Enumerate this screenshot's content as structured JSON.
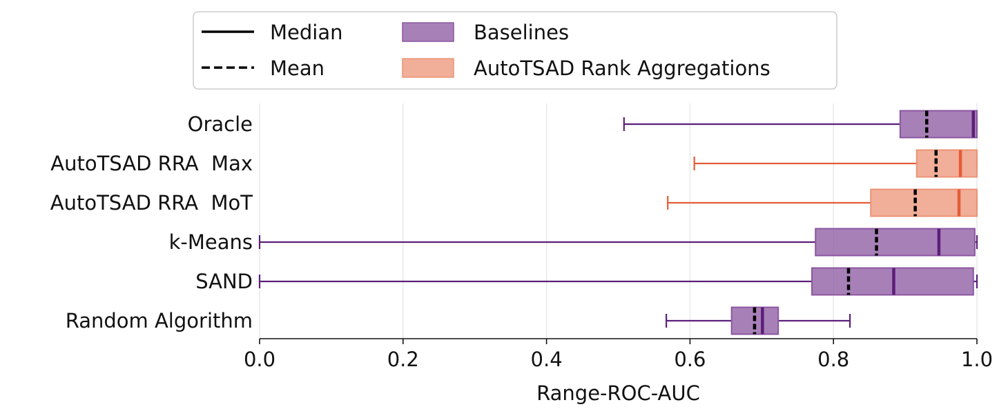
{
  "chart_data": {
    "type": "boxplot",
    "orientation": "horizontal",
    "title": "",
    "xlabel": "Range-ROC-AUC",
    "ylabel": "",
    "xlim": [
      0.0,
      1.0
    ],
    "xticks": [
      0.0,
      0.2,
      0.4,
      0.6,
      0.8,
      1.0
    ],
    "xtick_labels": [
      "0.0",
      "0.2",
      "0.4",
      "0.6",
      "0.8",
      "1.0"
    ],
    "grid": "vertical",
    "legend_position": "top-center",
    "legend": {
      "median_label": "Median",
      "mean_label": "Mean",
      "groups": [
        {
          "name": "Baselines",
          "color": "#8b56a0",
          "line_color": "#5b1f7a"
        },
        {
          "name": "AutoTSAD Rank Aggregations",
          "color": "#ec9377",
          "line_color": "#e35d36"
        }
      ]
    },
    "categories": [
      "Oracle",
      "AutoTSAD RRA  Max",
      "AutoTSAD RRA  MoT",
      "k-Means",
      "SAND",
      "Random Algorithm"
    ],
    "boxes": [
      {
        "label": "Oracle",
        "group": "Baselines",
        "whisker_low": 0.508,
        "q1": 0.893,
        "median": 0.995,
        "mean": 0.93,
        "q3": 1.0,
        "whisker_high": 1.0
      },
      {
        "label": "AutoTSAD RRA  Max",
        "group": "AutoTSAD Rank Aggregations",
        "whisker_low": 0.606,
        "q1": 0.916,
        "median": 0.977,
        "mean": 0.943,
        "q3": 1.0,
        "whisker_high": 1.0
      },
      {
        "label": "AutoTSAD RRA  MoT",
        "group": "AutoTSAD Rank Aggregations",
        "whisker_low": 0.569,
        "q1": 0.852,
        "median": 0.975,
        "mean": 0.914,
        "q3": 1.0,
        "whisker_high": 1.0
      },
      {
        "label": "k-Means",
        "group": "Baselines",
        "whisker_low": 0.0,
        "q1": 0.775,
        "median": 0.947,
        "mean": 0.86,
        "q3": 0.997,
        "whisker_high": 1.0
      },
      {
        "label": "SAND",
        "group": "Baselines",
        "whisker_low": 0.0,
        "q1": 0.77,
        "median": 0.884,
        "mean": 0.821,
        "q3": 0.995,
        "whisker_high": 1.0
      },
      {
        "label": "Random Algorithm",
        "group": "Baselines",
        "whisker_low": 0.567,
        "q1": 0.658,
        "median": 0.701,
        "mean": 0.69,
        "q3": 0.723,
        "whisker_high": 0.823
      }
    ]
  }
}
